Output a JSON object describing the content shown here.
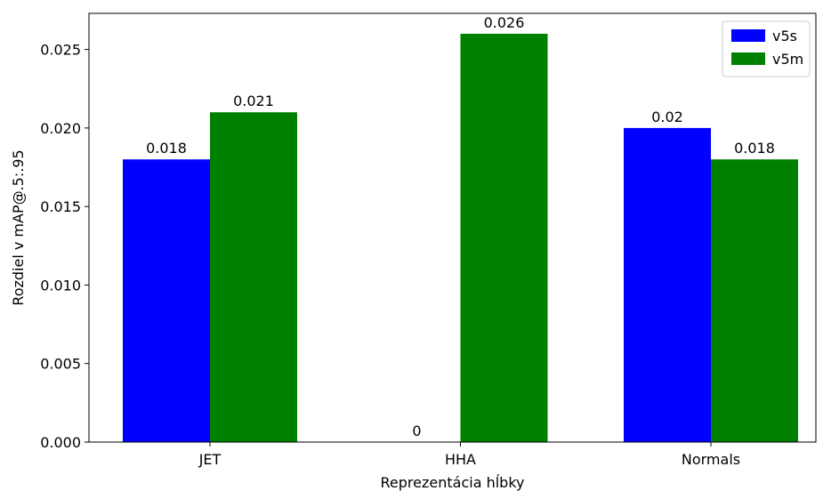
{
  "chart_data": {
    "type": "bar",
    "title": "",
    "xlabel": "Reprezentácia hĺbky",
    "ylabel": "Rozdiel v mAP@.5:.95",
    "categories": [
      "JET",
      "HHA",
      "Normals"
    ],
    "series": [
      {
        "name": "v5s",
        "color": "#0000ff",
        "values": [
          0.018,
          0,
          0.02
        ],
        "labels": [
          "0.018",
          "0",
          "0.02"
        ]
      },
      {
        "name": "v5m",
        "color": "#008000",
        "values": [
          0.021,
          0.026,
          0.018
        ],
        "labels": [
          "0.021",
          "0.026",
          "0.018"
        ]
      }
    ],
    "ylim": [
      0,
      0.0273
    ],
    "yticks": [
      0,
      0.005,
      0.01,
      0.015,
      0.02,
      0.025
    ],
    "ytick_labels": [
      "0.000",
      "0.005",
      "0.010",
      "0.015",
      "0.020",
      "0.025"
    ],
    "legend_position": "top-right",
    "grid": false
  }
}
